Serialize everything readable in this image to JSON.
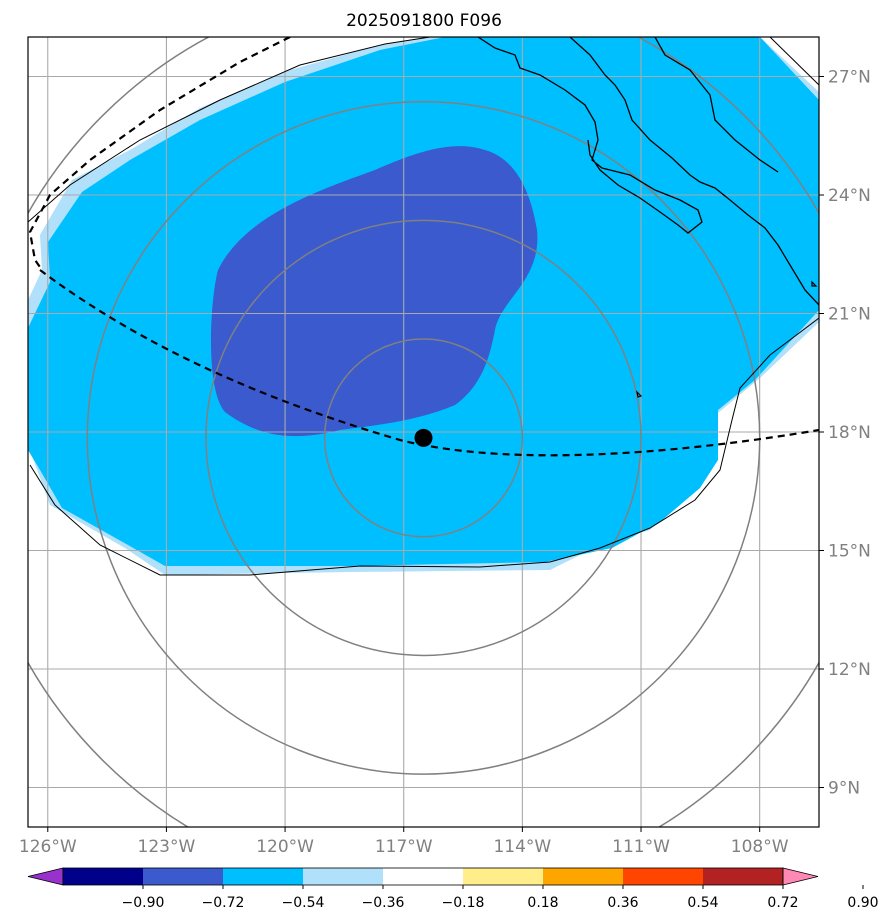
{
  "title": "2025091800 F096",
  "map": {
    "lon_range": [
      -126.5,
      -106.5
    ],
    "lat_range": [
      8,
      28
    ],
    "lon_ticks": [
      {
        "value": -126,
        "label": "126°W"
      },
      {
        "value": -123,
        "label": "123°W"
      },
      {
        "value": -120,
        "label": "120°W"
      },
      {
        "value": -117,
        "label": "117°W"
      },
      {
        "value": -114,
        "label": "114°W"
      },
      {
        "value": -111,
        "label": "111°W"
      },
      {
        "value": -108,
        "label": "108°W"
      }
    ],
    "lat_ticks": [
      {
        "value": 27,
        "label": "27°N"
      },
      {
        "value": 24,
        "label": "24°N"
      },
      {
        "value": 21,
        "label": "21°N"
      },
      {
        "value": 18,
        "label": "18°N"
      },
      {
        "value": 15,
        "label": "15°N"
      },
      {
        "value": 12,
        "label": "12°N"
      },
      {
        "value": 9,
        "label": "9°N"
      }
    ],
    "storm_center": {
      "lon": -116.5,
      "lat": 17.85
    },
    "range_ring_degrees": [
      2.5,
      5.5,
      8.5,
      11.5
    ],
    "colors": {
      "gridline": "#aaaaaa",
      "ring": "#808080",
      "coast": "#000000",
      "track": "#000000"
    }
  },
  "colorbar": {
    "levels": [
      "−0.90",
      "−0.72",
      "−0.54",
      "−0.36",
      "−0.18",
      "0.18",
      "0.36",
      "0.54",
      "0.72",
      "0.90"
    ],
    "colors": [
      "#9932cc",
      "#00008b",
      "#3a5acd",
      "#00bfff",
      "#b0e0fa",
      "#ffffff",
      "#ffee8a",
      "#ffa500",
      "#ff4500",
      "#b22222",
      "#ff88b4"
    ]
  }
}
